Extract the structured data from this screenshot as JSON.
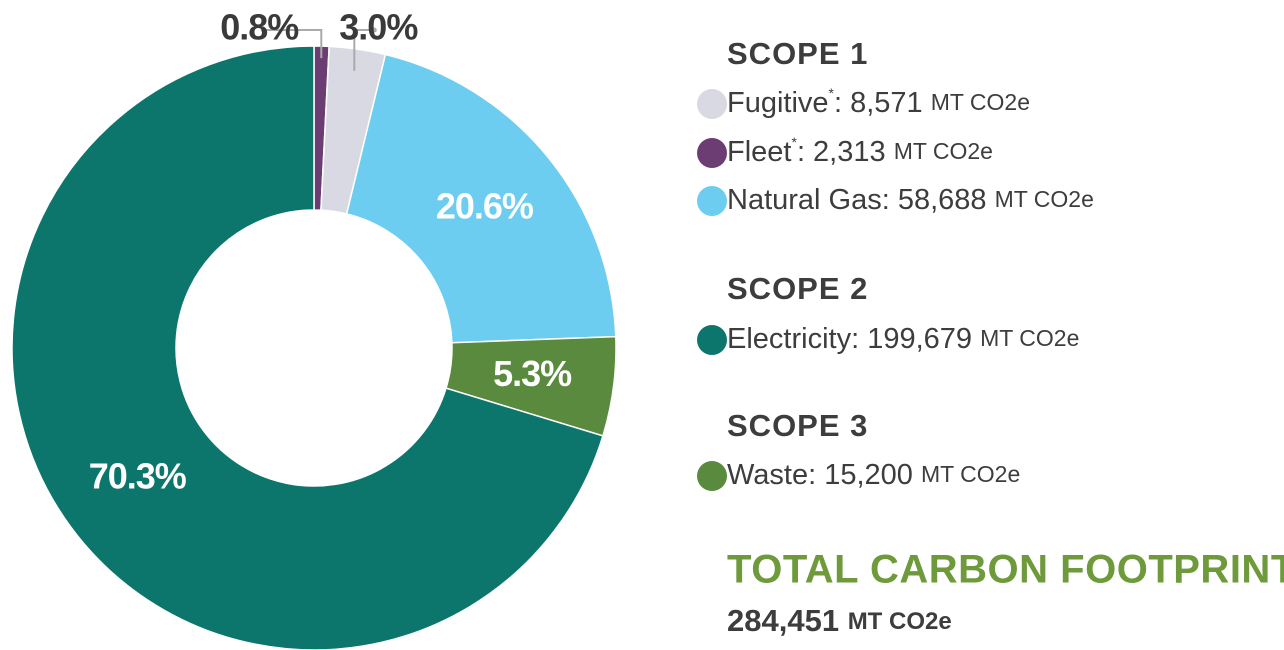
{
  "chart_data": {
    "type": "pie",
    "donut": true,
    "categories": [
      "Fleet",
      "Fugitive",
      "Natural Gas",
      "Waste",
      "Electricity"
    ],
    "values": [
      0.8,
      3.0,
      20.6,
      5.3,
      70.3
    ],
    "value_labels": [
      "0.8%",
      "3.0%",
      "20.6%",
      "5.3%",
      "70.3%"
    ],
    "colors": [
      "#6b3d72",
      "#d9d9e4",
      "#6ccdf0",
      "#5a8a3e",
      "#0c766c"
    ],
    "amounts": [
      ": 2,313",
      ": 8,571",
      ": 58,688",
      ": 15,200",
      ": 199,679"
    ],
    "footnote_mark": "*",
    "unit": "MT CO2e",
    "scopes": [
      "SCOPE 1",
      "SCOPE 2",
      "SCOPE 3"
    ],
    "total": {
      "title": "TOTAL CARBON FOOTPRINT",
      "value": "284,451",
      "unit": "MT CO2e"
    }
  }
}
